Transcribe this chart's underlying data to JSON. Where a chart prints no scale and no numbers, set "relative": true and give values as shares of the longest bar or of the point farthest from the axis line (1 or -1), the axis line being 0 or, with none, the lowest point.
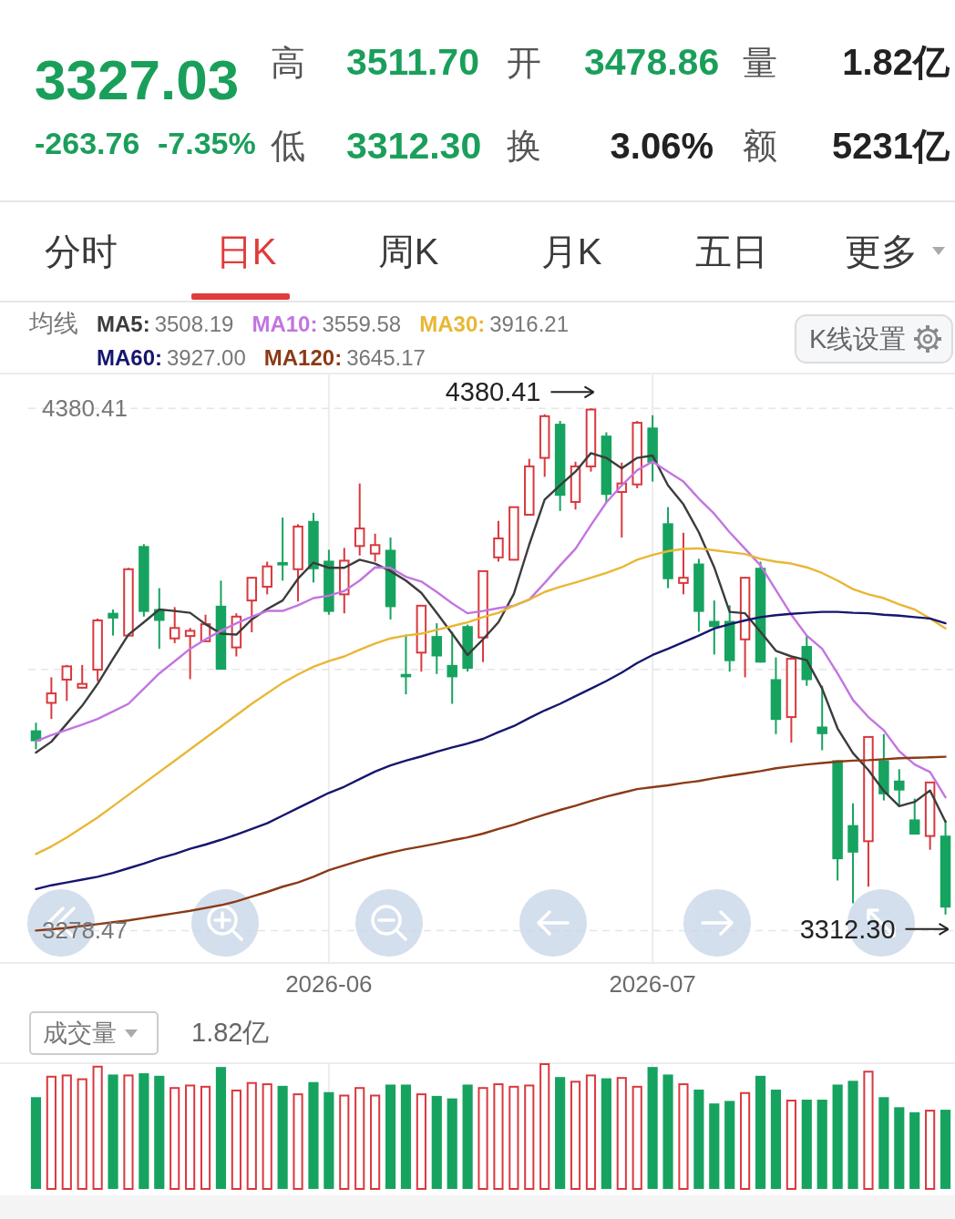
{
  "chart_data": [
    {
      "type": "other",
      "annotations": [
        "3327.03",
        "-263.76",
        "-7.35%",
        "高",
        "3511.70",
        "开",
        "3478.86",
        "量",
        "1.82亿",
        "低",
        "3312.30",
        "换",
        "3.06%",
        "额",
        "5231亿",
        "分时",
        "日K",
        "周K",
        "月K",
        "五日",
        "更多",
        "K线设置"
      ]
    },
    {
      "type": "candlestick",
      "categories": [
        null,
        null,
        null,
        null,
        null,
        null,
        null,
        null,
        null,
        null,
        null,
        null,
        null,
        null,
        null,
        null,
        null,
        null,
        null,
        "2026-06",
        null,
        null,
        null,
        null,
        null,
        null,
        null,
        null,
        null,
        null,
        null,
        null,
        null,
        null,
        null,
        null,
        null,
        null,
        null,
        null,
        "2026-07",
        null,
        null,
        null,
        null,
        null,
        null,
        null,
        null,
        null,
        null,
        null,
        null,
        null,
        null,
        null,
        null,
        null,
        null,
        null
      ],
      "ohlc": [
        [
          3701,
          3717,
          3661,
          3678
        ],
        [
          3759,
          3813,
          3725,
          3779
        ],
        [
          3808,
          3839,
          3763,
          3836
        ],
        [
          3791,
          3839,
          3789,
          3799
        ],
        [
          3829,
          3937,
          3805,
          3933
        ],
        [
          3949,
          3956,
          3901,
          3937
        ],
        [
          3901,
          4044,
          3900,
          4041
        ],
        [
          4090,
          4094,
          3941,
          3951
        ],
        [
          3957,
          4001,
          3873,
          3932
        ],
        [
          3895,
          3961,
          3885,
          3917
        ],
        [
          3900,
          3917,
          3809,
          3911
        ],
        [
          3889,
          3945,
          3889,
          3925
        ],
        [
          3964,
          4017,
          3829,
          3829
        ],
        [
          3876,
          3948,
          3857,
          3941
        ],
        [
          3975,
          4025,
          3908,
          4023
        ],
        [
          4004,
          4057,
          3988,
          4047
        ],
        [
          4056,
          4150,
          4017,
          4049
        ],
        [
          4041,
          4136,
          3973,
          4131
        ],
        [
          4143,
          4160,
          4013,
          4041
        ],
        [
          4059,
          4082,
          3945,
          3951
        ],
        [
          3988,
          4086,
          3948,
          4059
        ],
        [
          4090,
          4222,
          4070,
          4127
        ],
        [
          4074,
          4116,
          4057,
          4092
        ],
        [
          4082,
          4108,
          3935,
          3961
        ],
        [
          3820,
          3903,
          3777,
          3813
        ],
        [
          3865,
          3964,
          3825,
          3964
        ],
        [
          3900,
          3927,
          3820,
          3857
        ],
        [
          3839,
          3909,
          3757,
          3813
        ],
        [
          3921,
          3924,
          3825,
          3831
        ],
        [
          3897,
          4037,
          3845,
          4037
        ],
        [
          4066,
          4143,
          4057,
          4106
        ],
        [
          4061,
          4172,
          4061,
          4172
        ],
        [
          4156,
          4274,
          4156,
          4258
        ],
        [
          4276,
          4368,
          4236,
          4364
        ],
        [
          4348,
          4354,
          4164,
          4196
        ],
        [
          4183,
          4268,
          4167,
          4258
        ],
        [
          4258,
          4380.41,
          4247,
          4378
        ],
        [
          4323,
          4330,
          4182,
          4198
        ],
        [
          4204,
          4266,
          4108,
          4222
        ],
        [
          4220,
          4354,
          4212,
          4350
        ],
        [
          4340,
          4366,
          4226,
          4266
        ],
        [
          4138,
          4172,
          4001,
          4020
        ],
        [
          4012,
          4118,
          3988,
          4023
        ],
        [
          4053,
          4063,
          3909,
          3951
        ],
        [
          3932,
          3975,
          3861,
          3919
        ],
        [
          3932,
          3965,
          3825,
          3847
        ],
        [
          3893,
          4025,
          3813,
          4023
        ],
        [
          4044,
          4057,
          3844,
          3844
        ],
        [
          3809,
          3855,
          3693,
          3723
        ],
        [
          3729,
          3855,
          3675,
          3852
        ],
        [
          3879,
          3901,
          3795,
          3807
        ],
        [
          3709,
          3795,
          3659,
          3693
        ],
        [
          3638,
          3638,
          3384,
          3429
        ],
        [
          3501,
          3547,
          3336,
          3443
        ],
        [
          3467,
          3687,
          3371,
          3687
        ],
        [
          3638,
          3693,
          3553,
          3566
        ],
        [
          3595,
          3619,
          3542,
          3574
        ],
        [
          3513,
          3557,
          3481,
          3481
        ],
        [
          3478,
          3591,
          3449,
          3591
        ],
        [
          3478.86,
          3511.7,
          3312.3,
          3327.03
        ]
      ],
      "colors": [
        "#16a35f",
        "#d9383d",
        "#d9383d",
        "#d9383d",
        "#d9383d",
        "#16a35f",
        "#d9383d",
        "#16a35f",
        "#16a35f",
        "#d9383d",
        "#d9383d",
        "#d9383d",
        "#16a35f",
        "#d9383d",
        "#d9383d",
        "#d9383d",
        "#16a35f",
        "#d9383d",
        "#16a35f",
        "#16a35f",
        "#d9383d",
        "#d9383d",
        "#d9383d",
        "#16a35f",
        "#16a35f",
        "#d9383d",
        "#16a35f",
        "#16a35f",
        "#16a35f",
        "#d9383d",
        "#d9383d",
        "#d9383d",
        "#d9383d",
        "#d9383d",
        "#16a35f",
        "#d9383d",
        "#d9383d",
        "#16a35f",
        "#d9383d",
        "#d9383d",
        "#16a35f",
        "#16a35f",
        "#d9383d",
        "#16a35f",
        "#16a35f",
        "#16a35f",
        "#d9383d",
        "#16a35f",
        "#16a35f",
        "#d9383d",
        "#16a35f",
        "#16a35f",
        "#16a35f",
        "#16a35f",
        "#d9383d",
        "#16a35f",
        "#16a35f",
        "#16a35f",
        "#d9383d",
        "#16a35f"
      ],
      "series": [
        {
          "name": "MA5:",
          "type": "line",
          "color": "#3c3c3c",
          "values": [
            3654,
            3677,
            3715,
            3753,
            3799,
            3852,
            3903,
            3929,
            3956,
            3953,
            3949,
            3925,
            3905,
            3903,
            3935,
            3957,
            3975,
            4021,
            4055,
            4044,
            4044,
            4061,
            4053,
            4037,
            4017,
            3991,
            3949,
            3905,
            3860,
            3893,
            3929,
            3989,
            4093,
            4188,
            4218,
            4247,
            4286,
            4276,
            4254,
            4276,
            4281,
            4218,
            4178,
            4119,
            4045,
            3951,
            3948,
            3909,
            3869,
            3857,
            3849,
            3789,
            3705,
            3653,
            3617,
            3573,
            3541,
            3550,
            3574,
            3508.19
          ]
        },
        {
          "name": "MA10:",
          "type": "line",
          "color": "#c275e0",
          "values": [
            3678,
            3691,
            3702,
            3713,
            3725,
            3741,
            3757,
            3789,
            3821,
            3847,
            3873,
            3893,
            3911,
            3927,
            3941,
            3953,
            3953,
            3965,
            3980,
            3985,
            3995,
            4017,
            4045,
            4044,
            4025,
            4015,
            3993,
            3969,
            3948,
            3953,
            3959,
            3964,
            3977,
            4012,
            4049,
            4084,
            4134,
            4182,
            4218,
            4250,
            4268,
            4247,
            4226,
            4190,
            4158,
            4119,
            4084,
            4049,
            3997,
            3945,
            3901,
            3873,
            3821,
            3765,
            3729,
            3701,
            3657,
            3629,
            3613,
            3559.58
          ]
        },
        {
          "name": "MA30:",
          "type": "line",
          "color": "#e9b735",
          "values": [
            3440,
            3456,
            3475,
            3496,
            3517,
            3541,
            3565,
            3589,
            3613,
            3637,
            3661,
            3685,
            3709,
            3733,
            3757,
            3779,
            3801,
            3819,
            3835,
            3847,
            3857,
            3871,
            3884,
            3895,
            3901,
            3905,
            3913,
            3921,
            3929,
            3940,
            3949,
            3964,
            3977,
            3993,
            4004,
            4013,
            4023,
            4033,
            4045,
            4061,
            4071,
            4079,
            4084,
            4085,
            4081,
            4077,
            4073,
            4063,
            4057,
            4053,
            4045,
            4033,
            4017,
            3999,
            3988,
            3980,
            3967,
            3956,
            3937,
            3916.21
          ]
        },
        {
          "name": "MA60:",
          "type": "line",
          "color": "#16166e",
          "values": [
            3366,
            3374,
            3380,
            3386,
            3392,
            3400,
            3410,
            3420,
            3431,
            3440,
            3451,
            3460,
            3470,
            3481,
            3493,
            3505,
            3521,
            3537,
            3553,
            3569,
            3582,
            3598,
            3614,
            3627,
            3637,
            3646,
            3656,
            3665,
            3673,
            3683,
            3697,
            3710,
            3727,
            3743,
            3757,
            3773,
            3789,
            3805,
            3823,
            3843,
            3860,
            3873,
            3887,
            3901,
            3916,
            3925,
            3933,
            3940,
            3944,
            3947,
            3949,
            3951,
            3951,
            3949,
            3948,
            3945,
            3943,
            3940,
            3937,
            3927
          ]
        },
        {
          "name": "MA120:",
          "type": "line",
          "color": "#8b3a16",
          "values": [
            3278.47,
            3281,
            3284,
            3288,
            3292,
            3296,
            3300,
            3305,
            3310,
            3315,
            3320,
            3326,
            3332,
            3340,
            3350,
            3360,
            3371,
            3380,
            3392,
            3406,
            3416,
            3426,
            3435,
            3443,
            3450,
            3456,
            3462,
            3469,
            3475,
            3483,
            3493,
            3502,
            3513,
            3523,
            3533,
            3542,
            3552,
            3561,
            3569,
            3577,
            3581,
            3585,
            3590,
            3594,
            3600,
            3605,
            3610,
            3615,
            3621,
            3625,
            3629,
            3632,
            3635,
            3637,
            3638,
            3640,
            3642,
            3643,
            3644,
            3645.17
          ]
        }
      ],
      "ylim": [
        3210,
        4454
      ],
      "yticks": [
        3278.47,
        {
          "value": 3829.44,
          "label": null
        },
        4380.41
      ],
      "grid": true,
      "legend": "top left",
      "legend_title": "均线",
      "annotations": [
        "4380.41",
        "3312.30",
        "3508.19",
        "3559.58",
        "3916.21",
        "3927.00",
        "3645.17"
      ]
    },
    {
      "type": "bar",
      "title": "成交量",
      "categories": [
        null,
        null,
        null,
        null,
        null,
        null,
        null,
        null,
        null,
        null,
        null,
        null,
        null,
        null,
        null,
        null,
        null,
        null,
        null,
        "2026-06",
        null,
        null,
        null,
        null,
        null,
        null,
        null,
        null,
        null,
        null,
        null,
        null,
        null,
        null,
        null,
        null,
        null,
        null,
        null,
        null,
        "2026-07",
        null,
        null,
        null,
        null,
        null,
        null,
        null,
        null,
        null,
        null,
        null,
        null,
        null,
        null,
        null,
        null,
        null,
        null,
        null
      ],
      "values": [
        0.73,
        0.9,
        0.91,
        0.88,
        0.98,
        0.91,
        0.91,
        0.92,
        0.9,
        0.81,
        0.83,
        0.82,
        0.97,
        0.79,
        0.85,
        0.84,
        0.82,
        0.76,
        0.85,
        0.77,
        0.75,
        0.81,
        0.75,
        0.83,
        0.83,
        0.76,
        0.74,
        0.72,
        0.83,
        0.81,
        0.84,
        0.82,
        0.83,
        1,
        0.89,
        0.86,
        0.91,
        0.88,
        0.89,
        0.82,
        0.97,
        0.91,
        0.84,
        0.79,
        0.68,
        0.7,
        0.77,
        0.9,
        0.79,
        0.71,
        0.71,
        0.71,
        0.83,
        0.86,
        0.94,
        0.73,
        0.65,
        0.61,
        0.63,
        0.63
      ],
      "colors": [
        "#16a35f",
        "#d9383d",
        "#d9383d",
        "#d9383d",
        "#d9383d",
        "#16a35f",
        "#d9383d",
        "#16a35f",
        "#16a35f",
        "#d9383d",
        "#d9383d",
        "#d9383d",
        "#16a35f",
        "#d9383d",
        "#d9383d",
        "#d9383d",
        "#16a35f",
        "#d9383d",
        "#16a35f",
        "#16a35f",
        "#d9383d",
        "#d9383d",
        "#d9383d",
        "#16a35f",
        "#16a35f",
        "#d9383d",
        "#16a35f",
        "#16a35f",
        "#16a35f",
        "#d9383d",
        "#d9383d",
        "#d9383d",
        "#d9383d",
        "#d9383d",
        "#16a35f",
        "#d9383d",
        "#d9383d",
        "#16a35f",
        "#d9383d",
        "#d9383d",
        "#16a35f",
        "#16a35f",
        "#d9383d",
        "#16a35f",
        "#16a35f",
        "#16a35f",
        "#d9383d",
        "#16a35f",
        "#16a35f",
        "#d9383d",
        "#16a35f",
        "#16a35f",
        "#16a35f",
        "#16a35f",
        "#d9383d",
        "#16a35f",
        "#16a35f",
        "#16a35f",
        "#d9383d",
        "#16a35f"
      ],
      "relative": true,
      "grid": "x",
      "tick_labels": false,
      "annotations": [
        "1.82亿"
      ]
    }
  ]
}
